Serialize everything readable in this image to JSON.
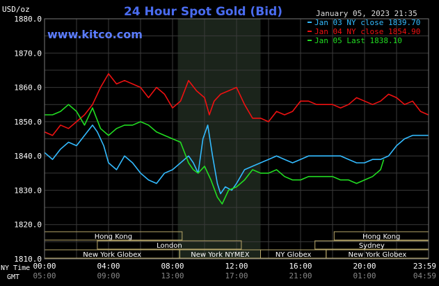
{
  "chart_data": {
    "type": "line",
    "title": "24 Hour Spot Gold (Bid)",
    "watermark": "www.kitco.com",
    "unit_label": "USD/oz",
    "timestamp": "January 05, 2023 21:35",
    "ylim": [
      1810,
      1880
    ],
    "yticks": [
      "1880.0",
      "1870.0",
      "1860.0",
      "1850.0",
      "1840.0",
      "1830.0",
      "1820.0",
      "1810.0"
    ],
    "x_row_labels": {
      "ny": "NY Time",
      "gmt": "GMT"
    },
    "xticks_ny": [
      "00:00",
      "04:00",
      "08:00",
      "12:00",
      "16:00",
      "20:00",
      "23:59"
    ],
    "xticks_gmt": [
      "05:00",
      "09:00",
      "13:00",
      "17:00",
      "21:00",
      "01:00",
      "04:59"
    ],
    "sessions_row1": [
      "Hong Kong",
      "Hong Kong"
    ],
    "sessions_row2": [
      "London",
      "Sydney"
    ],
    "sessions_row3": [
      "New York Globex",
      "New York NYMEX",
      "NY Globex",
      "New York Globex"
    ],
    "legend": [
      {
        "label": "Jan 03 NY close 1839.70",
        "color": "#33bbff"
      },
      {
        "label": "Jan 04 NY close 1854.90",
        "color": "#ee1111"
      },
      {
        "label": "Jan 05 Last 1838.10",
        "color": "#22dd22"
      }
    ],
    "series": [
      {
        "name": "Jan 03",
        "color": "#33bbff",
        "x": [
          0,
          0.5,
          1,
          1.5,
          2,
          2.5,
          3,
          3.3,
          3.7,
          4,
          4.5,
          5,
          5.5,
          6,
          6.5,
          7,
          7.5,
          8,
          8.5,
          9,
          9.3,
          9.6,
          9.9,
          10.2,
          10.5,
          10.8,
          11,
          11.3,
          11.7,
          12,
          12.5,
          13,
          13.5,
          14,
          14.5,
          15,
          15.5,
          16,
          16.5,
          17,
          17.5,
          18,
          18.5,
          19,
          19.5,
          20,
          20.5,
          21,
          21.5,
          22,
          22.5,
          23,
          23.5,
          23.98
        ],
        "y": [
          1841,
          1839,
          1842,
          1844,
          1843,
          1846,
          1849,
          1847,
          1843,
          1838,
          1836,
          1840,
          1838,
          1835,
          1833,
          1832,
          1835,
          1836,
          1838,
          1840,
          1838,
          1835,
          1845,
          1849,
          1840,
          1832,
          1829,
          1831,
          1830,
          1832,
          1836,
          1837,
          1838,
          1839,
          1840,
          1839,
          1838,
          1839,
          1840,
          1840,
          1840,
          1840,
          1840,
          1839,
          1838,
          1838,
          1839,
          1839,
          1840,
          1843,
          1845,
          1846,
          1846,
          1846
        ]
      },
      {
        "name": "Jan 04",
        "color": "#ee1111",
        "x": [
          0,
          0.5,
          1,
          1.5,
          2,
          2.5,
          3,
          3.5,
          4,
          4.5,
          5,
          5.5,
          6,
          6.5,
          7,
          7.5,
          8,
          8.5,
          9,
          9.5,
          10,
          10.3,
          10.6,
          11,
          11.5,
          12,
          12.5,
          13,
          13.5,
          14,
          14.5,
          15,
          15.5,
          16,
          16.5,
          17,
          17.5,
          18,
          18.5,
          19,
          19.5,
          20,
          20.5,
          21,
          21.5,
          22,
          22.5,
          23,
          23.5,
          23.98
        ],
        "y": [
          1847,
          1846,
          1849,
          1848,
          1850,
          1852,
          1855,
          1860,
          1864,
          1861,
          1862,
          1861,
          1860,
          1857,
          1860,
          1858,
          1854,
          1856,
          1862,
          1859,
          1857,
          1852,
          1856,
          1858,
          1859,
          1860,
          1855,
          1851,
          1851,
          1850,
          1853,
          1852,
          1853,
          1856,
          1856,
          1855,
          1855,
          1855,
          1854,
          1855,
          1857,
          1856,
          1855,
          1856,
          1858,
          1857,
          1855,
          1856,
          1853,
          1852
        ]
      },
      {
        "name": "Jan 05",
        "color": "#22dd22",
        "x": [
          0,
          0.5,
          1,
          1.5,
          2,
          2.5,
          3,
          3.5,
          4,
          4.5,
          5,
          5.5,
          6,
          6.5,
          7,
          7.5,
          8,
          8.5,
          9,
          9.3,
          9.6,
          10,
          10.4,
          10.8,
          11.1,
          11.5,
          12,
          12.5,
          13,
          13.5,
          14,
          14.5,
          15,
          15.5,
          16,
          16.5,
          17,
          17.5,
          18,
          18.5,
          19,
          19.5,
          20,
          20.5,
          21,
          21.2
        ],
        "y": [
          1852,
          1852,
          1853,
          1855,
          1853,
          1849,
          1854,
          1848,
          1846,
          1848,
          1849,
          1849,
          1850,
          1849,
          1847,
          1846,
          1845,
          1844,
          1838,
          1836,
          1835,
          1837,
          1833,
          1828,
          1826,
          1830,
          1831,
          1833,
          1836,
          1835,
          1835,
          1836,
          1834,
          1833,
          1833,
          1834,
          1834,
          1834,
          1834,
          1833,
          1833,
          1832,
          1833,
          1834,
          1836,
          1839
        ]
      }
    ]
  }
}
